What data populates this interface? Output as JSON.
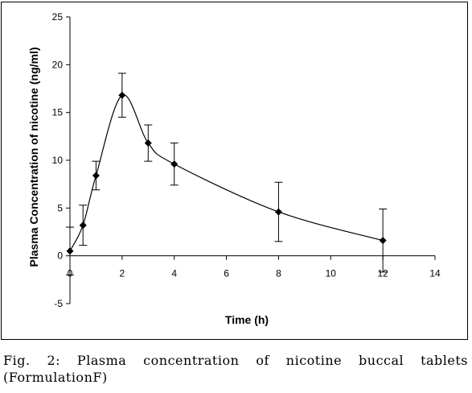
{
  "chart_data": {
    "type": "line",
    "title": "",
    "xlabel": "Time (h)",
    "ylabel": "Plasma Concentration of nicotine (ng/ml)",
    "xlim": [
      0,
      14
    ],
    "ylim": [
      -5,
      25
    ],
    "xticks": [
      0,
      2,
      4,
      6,
      8,
      10,
      12,
      14
    ],
    "yticks": [
      -5,
      0,
      5,
      10,
      15,
      20,
      25
    ],
    "grid": false,
    "legend": "none",
    "series": [
      {
        "x": [
          0,
          0.5,
          1,
          2,
          3,
          4,
          8,
          12
        ],
        "y": [
          0.5,
          3.2,
          8.4,
          16.8,
          11.8,
          9.6,
          4.6,
          1.6
        ],
        "error": [
          2.5,
          2.1,
          1.5,
          2.3,
          1.9,
          2.2,
          3.1,
          3.3
        ],
        "color": "#000000",
        "marker": "diamond"
      }
    ]
  },
  "caption": {
    "line1": "Fig. 2: Plasma concentration of nicotine buccal tablets",
    "line2": "(FormulationF)"
  }
}
